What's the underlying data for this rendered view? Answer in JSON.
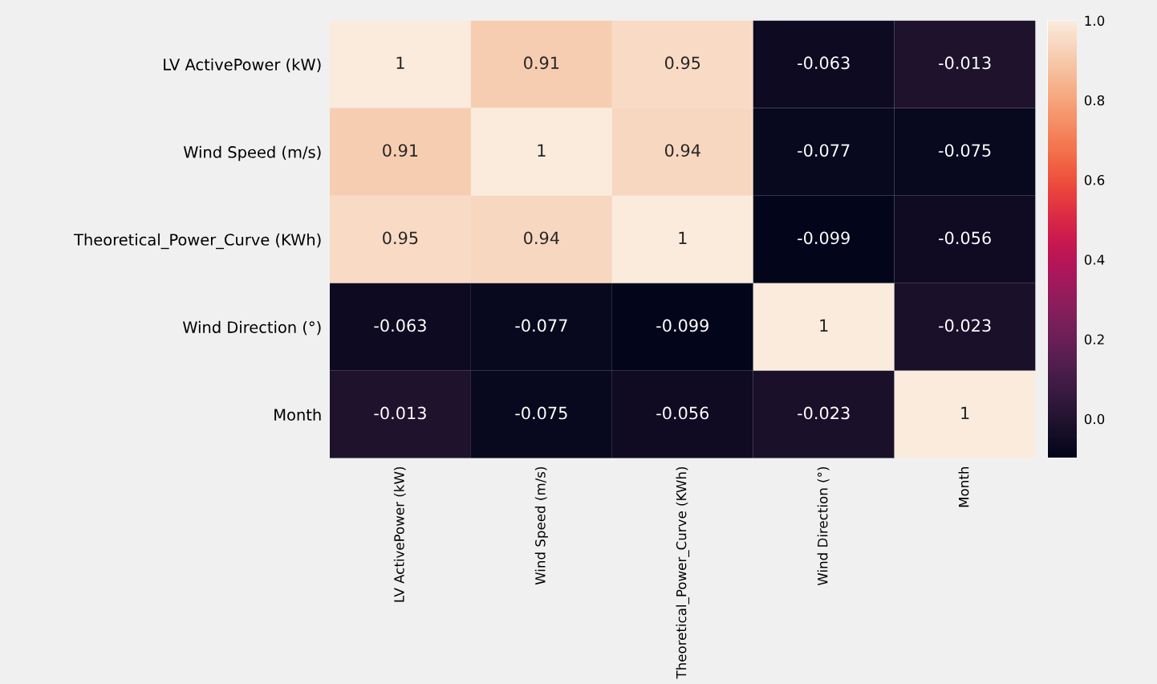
{
  "chart_data": {
    "type": "heatmap",
    "categories": [
      "LV ActivePower (kW)",
      "Wind Speed (m/s)",
      "Theoretical_Power_Curve (KWh)",
      "Wind Direction (°)",
      "Month"
    ],
    "y_categories": [
      "LV ActivePower (kW)",
      "Wind Speed (m/s)",
      "Theoretical_Power_Curve (KWh)",
      "Wind Direction (°)",
      "Month"
    ],
    "cells": [
      [
        1,
        0.91,
        0.95,
        -0.063,
        -0.013
      ],
      [
        0.91,
        1,
        0.94,
        -0.077,
        -0.075
      ],
      [
        0.95,
        0.94,
        1,
        -0.099,
        -0.056
      ],
      [
        -0.063,
        -0.077,
        -0.099,
        1,
        -0.023
      ],
      [
        -0.013,
        -0.075,
        -0.056,
        -0.023,
        1
      ]
    ],
    "clim": [
      -0.099,
      1
    ],
    "cticks": [
      {
        "value": 0,
        "label": "0.0"
      },
      0.2,
      0.4,
      0.6,
      0.8,
      {
        "value": 1,
        "label": "1.0"
      }
    ],
    "data_labels": true
  }
}
